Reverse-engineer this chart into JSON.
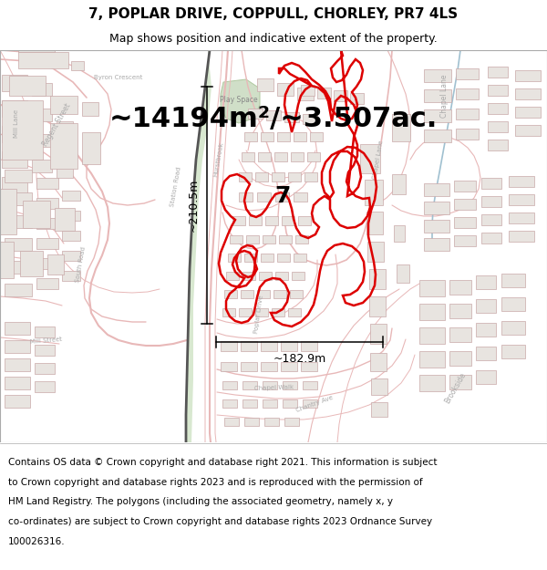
{
  "title_line1": "7, POPLAR DRIVE, COPPULL, CHORLEY, PR7 4LS",
  "title_line2": "Map shows position and indicative extent of the property.",
  "area_text": "~14194m²/~3.507ac.",
  "dim_horizontal": "~182.9m",
  "dim_vertical": "~210.5m",
  "plot_number": "7",
  "footer_lines": [
    "Contains OS data © Crown copyright and database right 2021. This information is subject",
    "to Crown copyright and database rights 2023 and is reproduced with the permission of",
    "HM Land Registry. The polygons (including the associated geometry, namely x, y",
    "co-ordinates) are subject to Crown copyright and database rights 2023 Ordnance Survey",
    "100026316."
  ],
  "map_bg": "#ffffff",
  "bldg_fill": "#e8e4e0",
  "bldg_edge": "#c8a8a8",
  "road_color": "#e8b8b8",
  "highlight_red": "#dd0000",
  "dim_color": "#000000",
  "title_fontsize": 11,
  "subtitle_fontsize": 9,
  "area_fontsize": 22,
  "dim_fontsize": 9,
  "plot_label_fontsize": 18,
  "footer_fontsize": 7.5,
  "label_color": "#c0a0a0",
  "green_fill": "#c8dcc0",
  "green_edge": "#a8c098",
  "blue_line": "#a0c0d0"
}
